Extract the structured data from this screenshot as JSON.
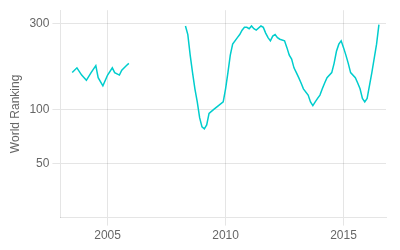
{
  "chart_data": {
    "type": "line",
    "ylabel": "World Ranking",
    "color": "#00CDCD",
    "log": "y",
    "grid": true,
    "xlim": [
      2003.0,
      2016.8
    ],
    "xticks": [
      2005,
      2010,
      2015
    ],
    "ylim": [
      25.118864315095795,
      354.8133892335753
    ],
    "yticks": [
      50,
      100,
      300
    ],
    "series": [
      {
        "x": [
          2003.5,
          2003.7,
          2003.9,
          2004.1,
          2004.3,
          2004.5,
          2004.6,
          2004.8,
          2005.0,
          2005.2,
          2005.3,
          2005.5,
          2005.6,
          2005.8,
          2005.9
        ],
        "values": [
          160,
          170,
          155,
          145,
          160,
          175,
          150,
          135,
          155,
          170,
          160,
          155,
          165,
          175,
          180
        ]
      },
      {
        "x": [
          2008.3,
          2008.4,
          2008.5,
          2008.6,
          2008.7,
          2008.8,
          2008.9,
          2009.0,
          2009.1,
          2009.2,
          2009.3,
          2009.5,
          2009.7,
          2009.9,
          2010.0,
          2010.1,
          2010.2,
          2010.3,
          2010.5,
          2010.6,
          2010.7,
          2010.8,
          2010.9,
          2011.0,
          2011.1,
          2011.2,
          2011.3,
          2011.5,
          2011.6,
          2011.7,
          2011.8,
          2011.9,
          2012.0,
          2012.1,
          2012.2,
          2012.3,
          2012.5,
          2012.6,
          2012.7,
          2012.8,
          2012.9,
          2013.0,
          2013.1,
          2013.2,
          2013.3,
          2013.5,
          2013.6,
          2013.7,
          2013.8,
          2013.9,
          2014.0,
          2014.1,
          2014.2,
          2014.3,
          2014.5,
          2014.6,
          2014.7,
          2014.8,
          2014.9,
          2015.0,
          2015.1,
          2015.2,
          2015.3,
          2015.5,
          2015.6,
          2015.7,
          2015.8,
          2015.9,
          2016.0,
          2016.2,
          2016.4,
          2016.5
        ],
        "values": [
          290,
          260,
          200,
          160,
          130,
          110,
          90,
          80,
          78,
          82,
          95,
          100,
          105,
          110,
          130,
          160,
          200,
          230,
          250,
          260,
          275,
          285,
          285,
          280,
          290,
          280,
          275,
          290,
          285,
          265,
          250,
          240,
          255,
          260,
          250,
          245,
          240,
          220,
          200,
          190,
          170,
          160,
          150,
          140,
          130,
          120,
          110,
          105,
          110,
          115,
          120,
          130,
          140,
          150,
          160,
          180,
          210,
          230,
          240,
          220,
          200,
          180,
          160,
          150,
          140,
          130,
          115,
          110,
          115,
          160,
          230,
          295
        ]
      }
    ]
  }
}
